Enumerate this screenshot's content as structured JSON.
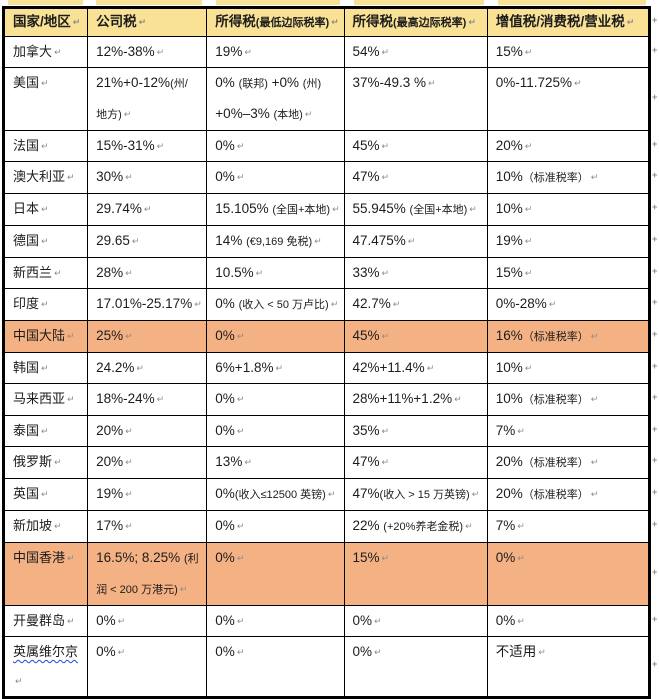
{
  "table": {
    "headers": [
      {
        "label": "国家/地区",
        "sublabel": ""
      },
      {
        "label": "公司税",
        "sublabel": ""
      },
      {
        "label": "所得税",
        "sublabel": "(最低边际税率)"
      },
      {
        "label": "所得税",
        "sublabel": "(最高边际税率)"
      },
      {
        "label": "增值税/消费税/营业税",
        "sublabel": ""
      }
    ],
    "rows": [
      {
        "region": "加拿大",
        "highlight": false,
        "corporate": "12%-38%",
        "income_min": "19%",
        "income_max": "54%",
        "vat": "15%"
      },
      {
        "region": "美国",
        "highlight": false,
        "corporate": "21%+0-12%(州/\n地方)",
        "income_min": "0% (联邦) +0% (州)\n+0%–3% (本地)",
        "income_max": "37%-49.3 %",
        "vat": "0%-11.725%"
      },
      {
        "region": "法国",
        "highlight": false,
        "corporate": "15%-31%",
        "income_min": "0%",
        "income_max": "45%",
        "vat": "20%"
      },
      {
        "region": "澳大利亚",
        "highlight": false,
        "corporate": "30%",
        "income_min": "0%",
        "income_max": "47%",
        "vat": "10%（标准税率）"
      },
      {
        "region": "日本",
        "highlight": false,
        "corporate": "29.74%",
        "income_min": "15.105% (全国+本地)",
        "income_max": "55.945% (全国+本地)",
        "vat": "10%"
      },
      {
        "region": "德国",
        "highlight": false,
        "corporate": "29.65",
        "income_min": "14% (€9,169 免税)",
        "income_max": "47.475%",
        "vat": "19%"
      },
      {
        "region": "新西兰",
        "highlight": false,
        "corporate": "28%",
        "income_min": "10.5%",
        "income_max": "33%",
        "vat": "15%"
      },
      {
        "region": "印度",
        "highlight": false,
        "corporate": "17.01%-25.17%",
        "income_min": "0% (收入 < 50 万卢比)",
        "income_max": "42.7%",
        "vat": "0%-28%"
      },
      {
        "region": "中国大陆",
        "highlight": true,
        "corporate": "25%",
        "income_min": "0%",
        "income_max": "45%",
        "vat": "16%（标准税率）"
      },
      {
        "region": "韩国",
        "highlight": false,
        "corporate": "24.2%",
        "income_min": "6%+1.8%",
        "income_max": "42%+11.4%",
        "vat": "10%"
      },
      {
        "region": "马来西亚",
        "highlight": false,
        "corporate": "18%-24%",
        "income_min": "0%",
        "income_max": "28%+11%+1.2%",
        "vat": "10%（标准税率）"
      },
      {
        "region": "泰国",
        "highlight": false,
        "corporate": "20%",
        "income_min": "0%",
        "income_max": "35%",
        "vat": "7%"
      },
      {
        "region": "俄罗斯",
        "highlight": false,
        "corporate": "20%",
        "income_min": "13%",
        "income_max": "47%",
        "vat": "20%（标准税率）"
      },
      {
        "region": "英国",
        "highlight": false,
        "corporate": "19%",
        "income_min": "0%(收入≤12500 英镑)",
        "income_max": "47%(收入 > 15 万英镑)",
        "vat": "20%（标准税率）"
      },
      {
        "region": "新加坡",
        "highlight": false,
        "corporate": "17%",
        "income_min": "0%",
        "income_max": "22% (+20%养老金税)",
        "vat": "7%"
      },
      {
        "region": "中国香港",
        "highlight": true,
        "corporate": "16.5%; 8.25% (利\n润 < 200 万港元)",
        "income_min": "0%",
        "income_max": "15%",
        "vat": "0%"
      },
      {
        "region": "开曼群岛",
        "highlight": false,
        "corporate": "0%",
        "income_min": "0%",
        "income_max": "0%",
        "vat": "0%"
      },
      {
        "region": "英属维尔京",
        "highlight": false,
        "misspell": true,
        "corporate": "0%",
        "income_min": "0%",
        "income_max": "0%",
        "vat": "不适用"
      }
    ]
  },
  "marks": {
    "cell_end": "↵",
    "row_end": "+"
  },
  "colors": {
    "header_bg": "#F9E296",
    "highlight_bg": "#F4B183",
    "border": "#000000",
    "mark": "#8b8b8b",
    "spell_underline": "#2244dd"
  }
}
